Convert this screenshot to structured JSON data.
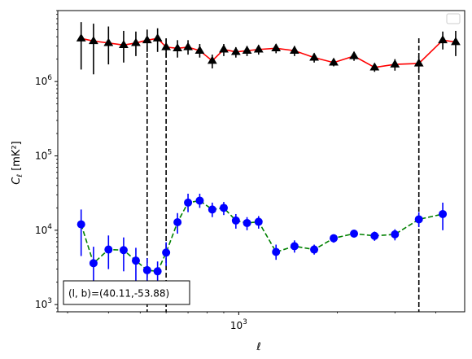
{
  "chart_data": {
    "type": "line",
    "title": "",
    "xlabel": "ℓ",
    "ylabel": "C_ℓ [mK²]",
    "xscale": "log",
    "yscale": "log",
    "xlim": [
      280,
      4900
    ],
    "ylim": [
      800,
      9000000
    ],
    "grid": false,
    "legend": {
      "placement": "top-right",
      "entries": []
    },
    "x_ticks": [
      {
        "value": 1000,
        "label": "10^3"
      }
    ],
    "y_ticks": [
      {
        "value": 1000,
        "label": "10^3"
      },
      {
        "value": 10000,
        "label": "10^4"
      },
      {
        "value": 100000,
        "label": "10^5"
      },
      {
        "value": 1000000,
        "label": "10^6"
      }
    ],
    "vlines": [
      525,
      600,
      3550
    ],
    "annotation": "(l, b)=(40.11,-53.88)",
    "series": [
      {
        "marker": "triangle",
        "color": "#000000",
        "line_color": "#ff0000",
        "line_style": "solid",
        "points": [
          {
            "x": 330,
            "y": 3800000,
            "ylo": 1450000,
            "yhi": 6300000
          },
          {
            "x": 360,
            "y": 3500000,
            "ylo": 1250000,
            "yhi": 6000000
          },
          {
            "x": 400,
            "y": 3300000,
            "ylo": 1700000,
            "yhi": 5500000
          },
          {
            "x": 445,
            "y": 3100000,
            "ylo": 1800000,
            "yhi": 4800000
          },
          {
            "x": 485,
            "y": 3300000,
            "ylo": 2200000,
            "yhi": 4700000
          },
          {
            "x": 525,
            "y": 3600000,
            "ylo": 2500000,
            "yhi": 5000000
          },
          {
            "x": 565,
            "y": 3800000,
            "ylo": 2500000,
            "yhi": 5200000
          },
          {
            "x": 600,
            "y": 2900000,
            "ylo": 2100000,
            "yhi": 3700000
          },
          {
            "x": 650,
            "y": 2800000,
            "ylo": 2100000,
            "yhi": 3600000
          },
          {
            "x": 700,
            "y": 2900000,
            "ylo": 2300000,
            "yhi": 3600000
          },
          {
            "x": 760,
            "y": 2600000,
            "ylo": 2100000,
            "yhi": 3200000
          },
          {
            "x": 830,
            "y": 1900000,
            "ylo": 1500000,
            "yhi": 2300000
          },
          {
            "x": 900,
            "y": 2700000,
            "ylo": 2200000,
            "yhi": 3200000
          },
          {
            "x": 980,
            "y": 2500000,
            "ylo": 2100000,
            "yhi": 2900000
          },
          {
            "x": 1060,
            "y": 2600000,
            "ylo": 2200000,
            "yhi": 3000000
          },
          {
            "x": 1150,
            "y": 2700000,
            "ylo": 2300000,
            "yhi": 3100000
          },
          {
            "x": 1300,
            "y": 2800000,
            "ylo": 2400000,
            "yhi": 3200000
          },
          {
            "x": 1480,
            "y": 2600000,
            "ylo": 2200000,
            "yhi": 3000000
          },
          {
            "x": 1700,
            "y": 2100000,
            "ylo": 1800000,
            "yhi": 2400000
          },
          {
            "x": 1950,
            "y": 1800000,
            "ylo": 1600000,
            "yhi": 2000000
          },
          {
            "x": 2250,
            "y": 2200000,
            "ylo": 1900000,
            "yhi": 2500000
          },
          {
            "x": 2600,
            "y": 1550000,
            "ylo": 1350000,
            "yhi": 1750000
          },
          {
            "x": 3000,
            "y": 1700000,
            "ylo": 1400000,
            "yhi": 2000000
          },
          {
            "x": 3550,
            "y": 1750000,
            "ylo": 1300000,
            "yhi": 2200000
          },
          {
            "x": 4200,
            "y": 3600000,
            "ylo": 2700000,
            "yhi": 4700000
          },
          {
            "x": 4600,
            "y": 3400000,
            "ylo": 2200000,
            "yhi": 4800000
          }
        ]
      },
      {
        "marker": "circle",
        "color": "#0000ff",
        "line_color": "#008000",
        "line_style": "dashed",
        "points": [
          {
            "x": 330,
            "y": 12000,
            "ylo": 4500,
            "yhi": 19000
          },
          {
            "x": 360,
            "y": 3600,
            "ylo": 1800,
            "yhi": 6000
          },
          {
            "x": 400,
            "y": 5500,
            "ylo": 3000,
            "yhi": 8500
          },
          {
            "x": 445,
            "y": 5400,
            "ylo": 2800,
            "yhi": 8000
          },
          {
            "x": 485,
            "y": 3900,
            "ylo": 2000,
            "yhi": 5800
          },
          {
            "x": 525,
            "y": 2900,
            "ylo": 1700,
            "yhi": 4200
          },
          {
            "x": 565,
            "y": 2800,
            "ylo": 1800,
            "yhi": 3800
          },
          {
            "x": 600,
            "y": 5000,
            "ylo": 3300,
            "yhi": 6900
          },
          {
            "x": 650,
            "y": 12800,
            "ylo": 9000,
            "yhi": 17000
          },
          {
            "x": 700,
            "y": 23500,
            "ylo": 17500,
            "yhi": 31000
          },
          {
            "x": 760,
            "y": 25000,
            "ylo": 20000,
            "yhi": 31000
          },
          {
            "x": 830,
            "y": 19000,
            "ylo": 15000,
            "yhi": 23500
          },
          {
            "x": 900,
            "y": 20000,
            "ylo": 16000,
            "yhi": 24000
          },
          {
            "x": 980,
            "y": 13500,
            "ylo": 10500,
            "yhi": 16500
          },
          {
            "x": 1060,
            "y": 12500,
            "ylo": 10000,
            "yhi": 15000
          },
          {
            "x": 1150,
            "y": 13000,
            "ylo": 10500,
            "yhi": 15500
          },
          {
            "x": 1300,
            "y": 5100,
            "ylo": 4000,
            "yhi": 6400
          },
          {
            "x": 1480,
            "y": 6100,
            "ylo": 5000,
            "yhi": 7300
          },
          {
            "x": 1700,
            "y": 5500,
            "ylo": 4700,
            "yhi": 6400
          },
          {
            "x": 1950,
            "y": 7800,
            "ylo": 6800,
            "yhi": 8800
          },
          {
            "x": 2250,
            "y": 9000,
            "ylo": 8000,
            "yhi": 10000
          },
          {
            "x": 2600,
            "y": 8400,
            "ylo": 7200,
            "yhi": 9600
          },
          {
            "x": 3000,
            "y": 8800,
            "ylo": 7300,
            "yhi": 10300
          },
          {
            "x": 3550,
            "y": 14000,
            "ylo": 11000,
            "yhi": 17500
          },
          {
            "x": 4200,
            "y": 16500,
            "ylo": 10000,
            "yhi": 23500
          }
        ]
      }
    ]
  }
}
